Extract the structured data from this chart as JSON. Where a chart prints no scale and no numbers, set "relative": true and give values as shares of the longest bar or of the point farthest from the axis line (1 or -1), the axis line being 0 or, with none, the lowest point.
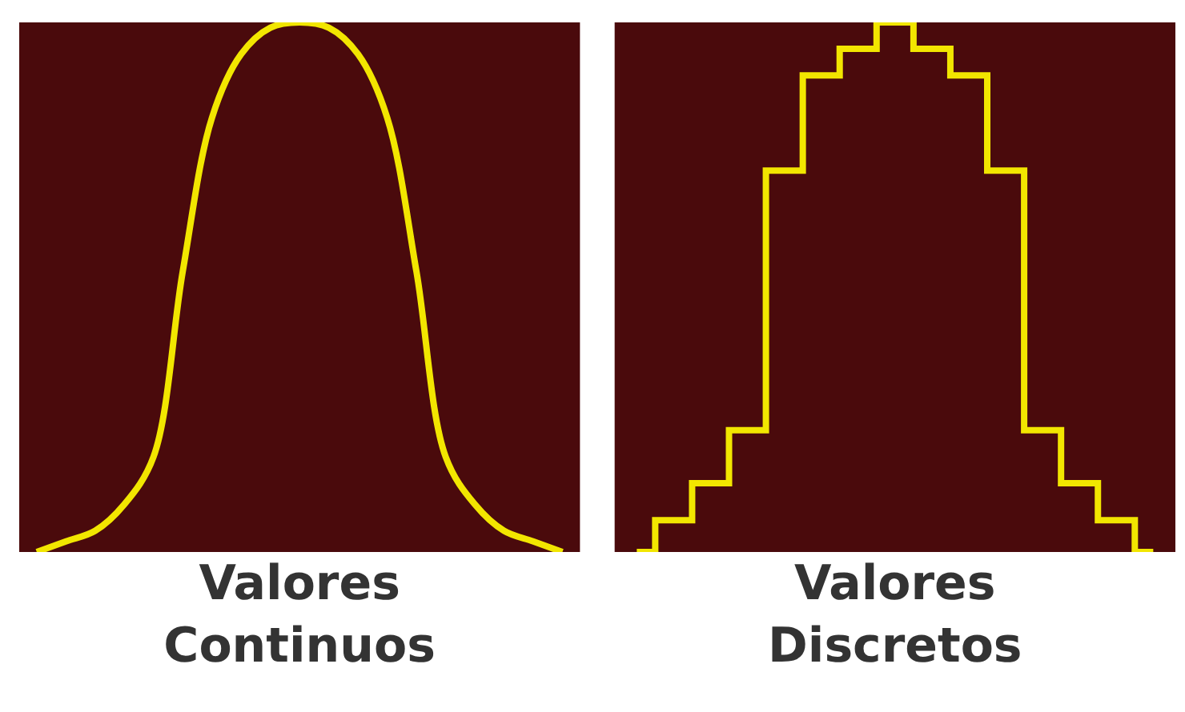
{
  "chart_data": [
    {
      "type": "line",
      "relative": true,
      "xlabel": "Valores\nContinuos",
      "grid": false,
      "categories": [
        null,
        null,
        null,
        null,
        null,
        null,
        null,
        null,
        null,
        null,
        null,
        null,
        null,
        null,
        null,
        null,
        null,
        null,
        null
      ],
      "series": [
        {
          "color": "#f2e600",
          "values": [
            0,
            0.02,
            0.04,
            0.09,
            0.18,
            0.53,
            0.82,
            0.94,
            0.99,
            1,
            0.99,
            0.94,
            0.82,
            0.53,
            0.18,
            0.09,
            0.04,
            0.02,
            0
          ]
        }
      ]
    },
    {
      "type": "step",
      "relative": true,
      "xlabel": "Valores\nDiscretos",
      "grid": false,
      "categories": [
        null,
        null,
        null,
        null,
        null,
        null,
        null,
        null,
        null,
        null,
        null,
        null,
        null,
        null,
        null
      ],
      "series": [
        {
          "color": "#f2e600",
          "values": [
            0,
            0.06,
            0.13,
            0.23,
            0.72,
            0.9,
            0.95,
            1,
            0.95,
            0.9,
            0.72,
            0.23,
            0.13,
            0.06,
            0
          ]
        }
      ]
    }
  ]
}
